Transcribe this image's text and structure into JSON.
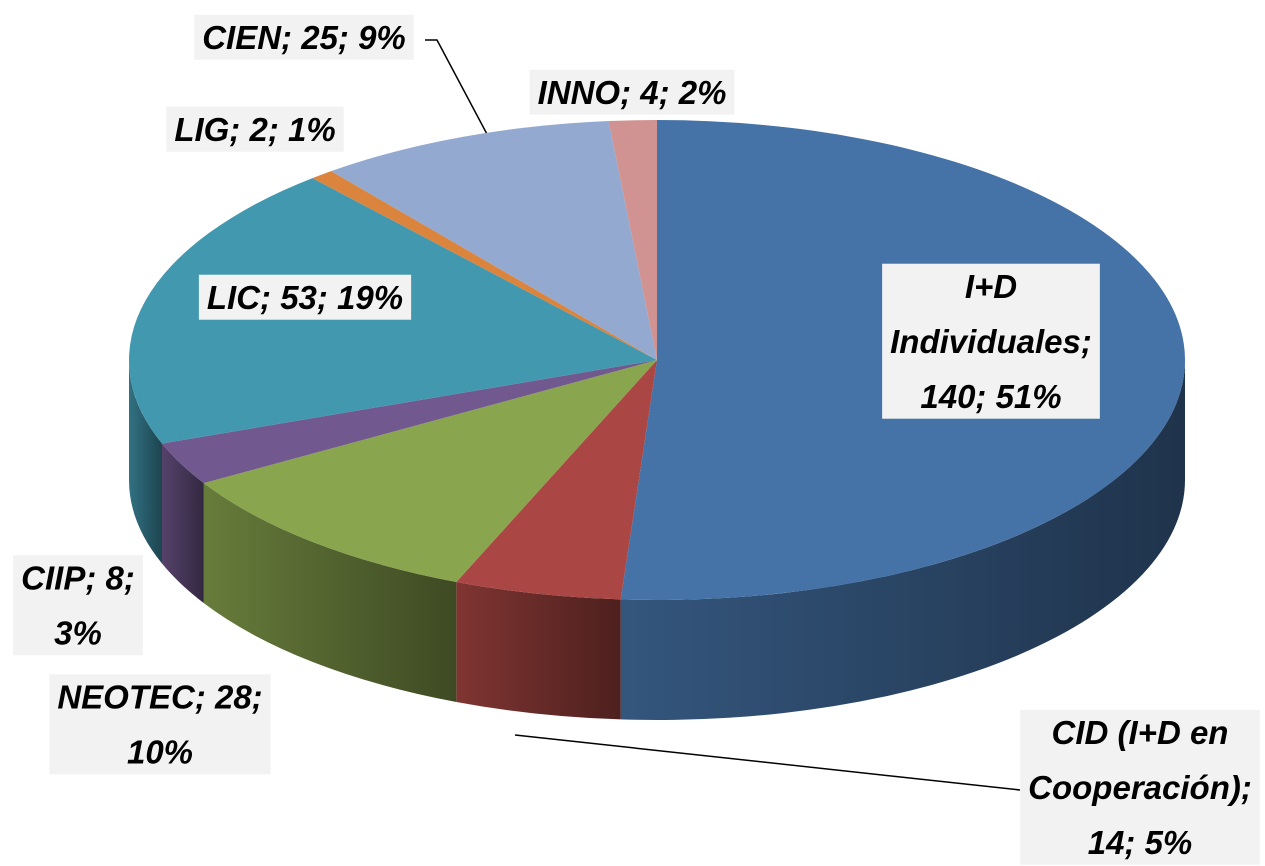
{
  "chart_data": {
    "type": "pie3d",
    "values": [
      140,
      14,
      28,
      8,
      53,
      2,
      25,
      4
    ],
    "value_labels": [
      "I+D Individuales; 140; 51%",
      "CID (I+D en Cooperación); 14; 5%",
      "NEOTEC; 28; 10%",
      "CIIP; 8; 3%",
      "LIC; 53; 19%",
      "LIG; 2; 1%",
      "CIEN; 25; 9%",
      "INNO; 4; 2%"
    ],
    "colors": [
      "#4572a7",
      "#aa4643",
      "#89a54e",
      "#71588f",
      "#4198af",
      "#db843d",
      "#93a9cf",
      "#d19392"
    ]
  }
}
